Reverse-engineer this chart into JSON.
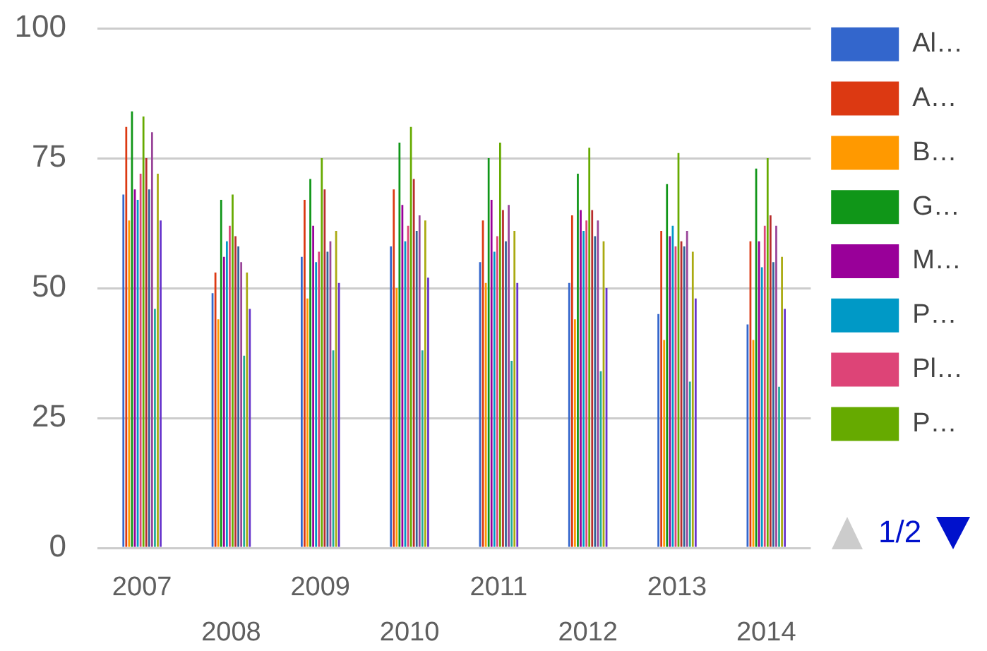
{
  "chart_data": {
    "type": "bar",
    "categories": [
      "2007",
      "2008",
      "2009",
      "2010",
      "2011",
      "2012",
      "2013",
      "2014"
    ],
    "series": [
      {
        "name": "Al…",
        "color": "#3366cc",
        "values": [
          68,
          49,
          56,
          58,
          55,
          51,
          45,
          43
        ]
      },
      {
        "name": "A…",
        "color": "#dc3912",
        "values": [
          81,
          53,
          67,
          69,
          63,
          64,
          61,
          59
        ]
      },
      {
        "name": "B…",
        "color": "#ff9900",
        "values": [
          63,
          44,
          48,
          50,
          51,
          44,
          40,
          40
        ]
      },
      {
        "name": "G…",
        "color": "#109618",
        "values": [
          84,
          67,
          71,
          78,
          75,
          72,
          70,
          73
        ]
      },
      {
        "name": "M…",
        "color": "#990099",
        "values": [
          69,
          56,
          62,
          66,
          67,
          65,
          60,
          59
        ]
      },
      {
        "name": "P…",
        "color": "#0099c6",
        "values": [
          67,
          59,
          55,
          59,
          57,
          61,
          62,
          54
        ]
      },
      {
        "name": "Pl…",
        "color": "#dd4477",
        "values": [
          72,
          62,
          57,
          62,
          60,
          63,
          58,
          62
        ]
      },
      {
        "name": "P…",
        "color": "#66aa00",
        "values": [
          83,
          68,
          75,
          81,
          78,
          77,
          76,
          75
        ]
      },
      {
        "color": "#b82e2e",
        "values": [
          75,
          60,
          69,
          71,
          65,
          65,
          59,
          64
        ]
      },
      {
        "color": "#316395",
        "values": [
          69,
          58,
          57,
          61,
          59,
          60,
          58,
          55
        ]
      },
      {
        "color": "#994499",
        "values": [
          80,
          55,
          59,
          64,
          66,
          63,
          61,
          62
        ]
      },
      {
        "color": "#22aa99",
        "values": [
          46,
          37,
          38,
          38,
          36,
          34,
          32,
          31
        ]
      },
      {
        "color": "#aaaa11",
        "values": [
          72,
          53,
          61,
          63,
          61,
          59,
          57,
          56
        ]
      },
      {
        "color": "#6633cc",
        "values": [
          63,
          46,
          51,
          52,
          51,
          50,
          48,
          46
        ]
      }
    ],
    "ylim": [
      0,
      100
    ],
    "yticks": [
      0,
      25,
      50,
      75,
      100
    ],
    "grid": "y",
    "legend": "right",
    "annotations": [
      "1/2"
    ]
  }
}
